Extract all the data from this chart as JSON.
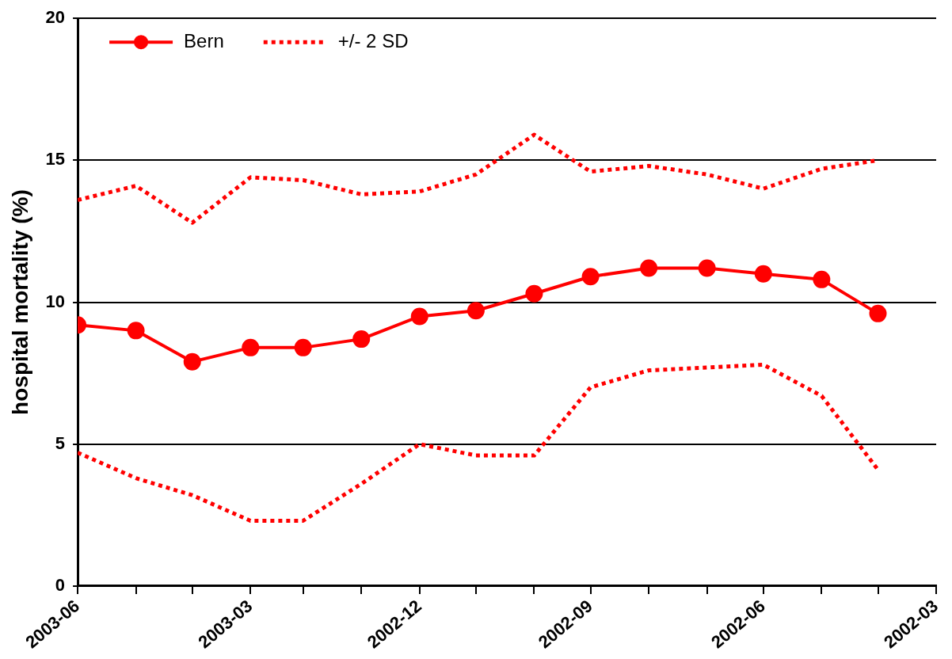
{
  "chart_data": {
    "type": "line",
    "ylabel": "hospital mortality (%)",
    "x": [
      "2003-06",
      "2003-05",
      "2003-04",
      "2003-03",
      "2003-02",
      "2003-01",
      "2002-12",
      "2002-11",
      "2002-10",
      "2002-09",
      "2002-08",
      "2002-07",
      "2002-06",
      "2002-05",
      "2002-04"
    ],
    "xlim": [
      "2003-06",
      "2002-03"
    ],
    "xticks": [
      "2003-06",
      {
        "value": "2003-05",
        "label": null
      },
      {
        "value": "2003-04",
        "label": null
      },
      "2003-03",
      {
        "value": "2003-02",
        "label": null
      },
      {
        "value": "2003-01",
        "label": null
      },
      "2002-12",
      {
        "value": "2002-11",
        "label": null
      },
      {
        "value": "2002-10",
        "label": null
      },
      "2002-09",
      {
        "value": "2002-08",
        "label": null
      },
      {
        "value": "2002-07",
        "label": null
      },
      "2002-06",
      {
        "value": "2002-05",
        "label": null
      },
      {
        "value": "2002-04",
        "label": null
      },
      "2002-03"
    ],
    "ylim": [
      0,
      20
    ],
    "yticks": [
      0,
      5,
      10,
      15,
      20
    ],
    "grid": "y",
    "legend": "top left",
    "series": [
      {
        "name": "Bern",
        "color": "#ff0000",
        "marker": "circle",
        "line_style": "solid",
        "values": [
          9.2,
          9.0,
          7.9,
          8.4,
          8.4,
          8.7,
          9.5,
          9.7,
          10.3,
          10.9,
          11.2,
          11.2,
          11.0,
          10.8,
          9.6
        ]
      },
      {
        "name": "+/- 2 SD",
        "color": "#ff0000",
        "marker": "none",
        "line_style": "dotted",
        "values": [
          13.6,
          14.1,
          12.8,
          14.4,
          14.3,
          13.8,
          13.9,
          14.5,
          15.9,
          14.6,
          14.8,
          14.5,
          14.0,
          14.7,
          15.0
        ]
      },
      {
        "color": "#ff0000",
        "marker": "none",
        "line_style": "dotted",
        "values": [
          4.7,
          3.8,
          3.2,
          2.3,
          2.3,
          3.6,
          5.0,
          4.6,
          4.6,
          7.0,
          7.6,
          7.7,
          7.8,
          6.7,
          4.1
        ]
      }
    ]
  }
}
